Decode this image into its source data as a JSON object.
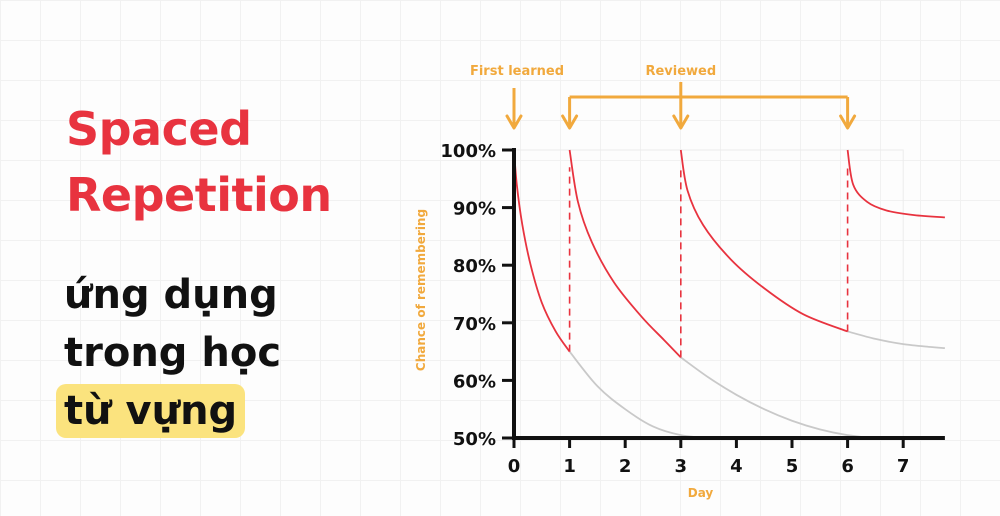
{
  "title": {
    "line1": "Spaced",
    "line2": "Repetition"
  },
  "subtitle": {
    "line1": "ứng dụng",
    "line2": "trong học",
    "line3": "từ vựng"
  },
  "colors": {
    "accent_red": "#e8333f",
    "annotation_orange": "#f1a93d",
    "highlight_yellow": "#fbe37e",
    "forgetting_gray": "#c9c9c9",
    "axis": "#111111"
  },
  "chart_data": {
    "type": "line",
    "xlabel": "Day",
    "ylabel": "Chance of remembering",
    "x_ticks": [
      "0",
      "1",
      "2",
      "3",
      "4",
      "5",
      "6",
      "7"
    ],
    "y_ticks": [
      "100%",
      "90%",
      "80%",
      "70%",
      "60%",
      "50%"
    ],
    "xlim": [
      0,
      7.75
    ],
    "ylim": [
      50,
      100
    ],
    "annotations": [
      {
        "text": "First learned",
        "days": [
          0
        ]
      },
      {
        "text": "Reviewed",
        "days": [
          1,
          3,
          6
        ]
      }
    ],
    "series": [
      {
        "color": "red",
        "points": [
          [
            0,
            100
          ],
          [
            0.05,
            94
          ],
          [
            0.15,
            87
          ],
          [
            0.3,
            80
          ],
          [
            0.5,
            73.5
          ],
          [
            0.75,
            68.5
          ],
          [
            1,
            65
          ]
        ]
      },
      {
        "color": "gray",
        "points": [
          [
            1,
            65
          ],
          [
            1.5,
            59
          ],
          [
            2,
            55
          ],
          [
            2.5,
            52
          ],
          [
            3,
            50.5
          ],
          [
            3.5,
            50
          ],
          [
            4,
            50
          ]
        ]
      },
      {
        "color": "red",
        "points": [
          [
            1,
            100
          ],
          [
            1.15,
            91
          ],
          [
            1.4,
            84
          ],
          [
            1.8,
            77
          ],
          [
            2.3,
            71
          ],
          [
            2.7,
            67
          ],
          [
            3,
            64
          ]
        ]
      },
      {
        "color": "gray",
        "points": [
          [
            3,
            64
          ],
          [
            3.5,
            60.5
          ],
          [
            4,
            57.5
          ],
          [
            4.5,
            55
          ],
          [
            5,
            53
          ],
          [
            5.5,
            51.5
          ],
          [
            6,
            50.5
          ],
          [
            6.5,
            50
          ],
          [
            7,
            50
          ]
        ]
      },
      {
        "color": "red",
        "points": [
          [
            3,
            100
          ],
          [
            3.12,
            93
          ],
          [
            3.4,
            87
          ],
          [
            3.9,
            81
          ],
          [
            4.5,
            76
          ],
          [
            5.2,
            71.5
          ],
          [
            6,
            68.5
          ]
        ]
      },
      {
        "color": "gray",
        "points": [
          [
            6,
            68.5
          ],
          [
            6.5,
            67.2
          ],
          [
            7,
            66.3
          ],
          [
            7.5,
            65.8
          ],
          [
            7.75,
            65.6
          ]
        ]
      },
      {
        "color": "red",
        "points": [
          [
            6,
            100
          ],
          [
            6.1,
            94
          ],
          [
            6.35,
            91
          ],
          [
            6.7,
            89.5
          ],
          [
            7.2,
            88.7
          ],
          [
            7.75,
            88.3
          ]
        ]
      }
    ],
    "review_lines": [
      {
        "x": 1,
        "from": 65,
        "to": 97
      },
      {
        "x": 3,
        "from": 64,
        "to": 97
      },
      {
        "x": 6,
        "from": 68.5,
        "to": 97
      }
    ],
    "grid": false
  }
}
